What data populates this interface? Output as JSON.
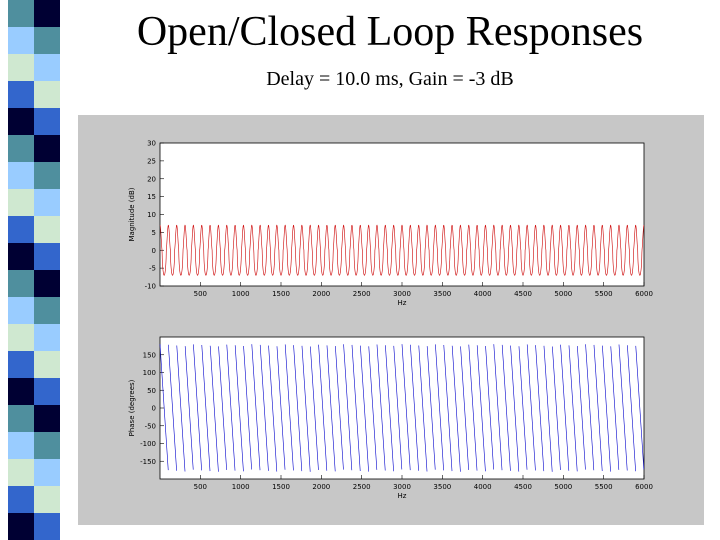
{
  "slide": {
    "title": "Open/Closed Loop Responses",
    "subtitle": "Delay = 10.0 ms, Gain =  -3 dB"
  },
  "colors": {
    "figure_bg": "#c7c7c7",
    "magnitude": "#cc0000",
    "phase": "#0000cc",
    "stripe": [
      "#4f8f9e",
      "#3366cc",
      "#99ccff",
      "#000033",
      "#cfe8d0"
    ]
  },
  "chart_data": [
    {
      "type": "line",
      "ylabel": "Magnitude (dB)",
      "xlabel": "Hz",
      "xlim": [
        0,
        6000
      ],
      "ylim": [
        -10,
        30
      ],
      "x_ticks": [
        500,
        1000,
        1500,
        2000,
        2500,
        3000,
        3500,
        4000,
        4500,
        5000,
        5500,
        6000
      ],
      "x_tick_labels": [
        "500",
        "1000",
        "1500",
        "2000",
        "2500",
        "3000",
        "3500",
        "4000",
        "4500",
        "5000",
        "5500",
        "6000"
      ],
      "y_ticks": [
        -10,
        -5,
        0,
        5,
        10,
        15,
        20,
        25,
        30
      ],
      "y_tick_labels": [
        "-10",
        "-5",
        "0",
        "5",
        "10",
        "15",
        "20",
        "25",
        "30"
      ],
      "series": [
        {
          "peak_max": 7,
          "trough_min": -7,
          "cycles": 58,
          "color": "#cc0000"
        }
      ]
    },
    {
      "type": "line",
      "ylabel": "Phase (degrees)",
      "xlabel": "Hz",
      "xlim": [
        0,
        6000
      ],
      "ylim": [
        -200,
        200
      ],
      "x_ticks": [
        500,
        1000,
        1500,
        2000,
        2500,
        3000,
        3500,
        4000,
        4500,
        5000,
        5500,
        6000
      ],
      "x_tick_labels": [
        "500",
        "1000",
        "1500",
        "2000",
        "2500",
        "3000",
        "3500",
        "4000",
        "4500",
        "5000",
        "5500",
        "6000"
      ],
      "y_ticks": [
        -150,
        -100,
        -50,
        0,
        50,
        100,
        150
      ],
      "y_tick_labels": [
        "-150",
        "-100",
        "-50",
        "0",
        "50",
        "100",
        "150"
      ],
      "series": [
        {
          "wraps": 58,
          "range": [
            -180,
            180
          ],
          "color": "#0000cc"
        }
      ]
    }
  ]
}
